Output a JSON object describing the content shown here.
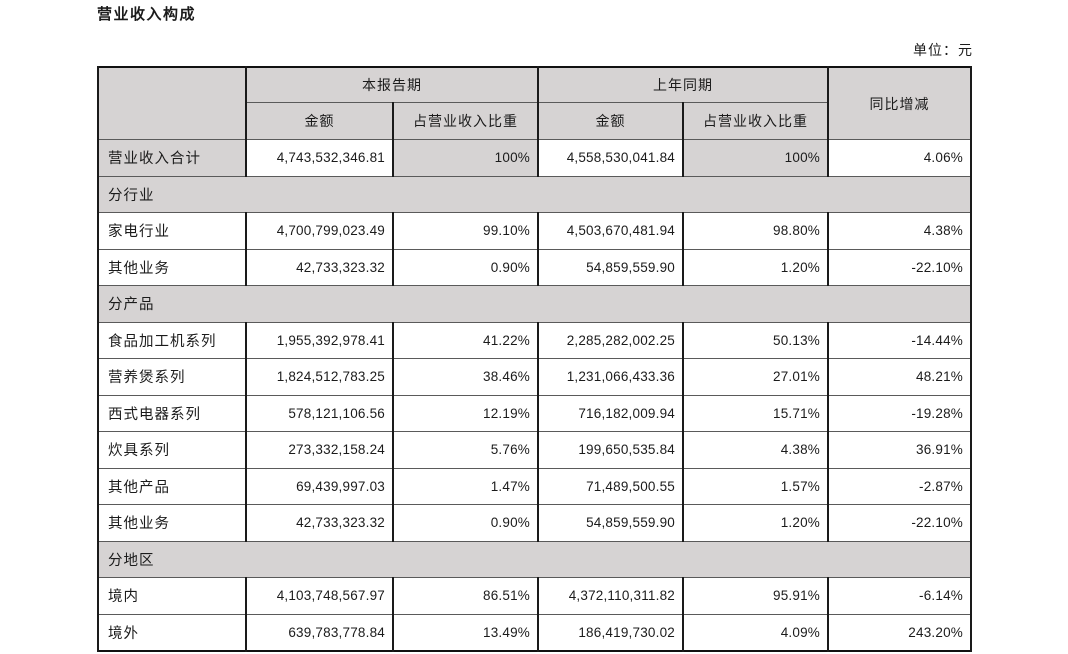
{
  "page": {
    "title": "营业收入构成",
    "unit_label": "单位：元"
  },
  "table": {
    "header": {
      "current_period": "本报告期",
      "prior_period": "上年同期",
      "yoy_change": "同比增减",
      "amount": "金额",
      "proportion": "占营业收入比重"
    },
    "rows": [
      {
        "type": "data",
        "highlight": true,
        "label": "营业收入合计",
        "cur_amount": "4,743,532,346.81",
        "cur_pct": "100%",
        "prior_amount": "4,558,530,041.84",
        "prior_pct": "100%",
        "change": "4.06%"
      },
      {
        "type": "section",
        "label": "分行业"
      },
      {
        "type": "data",
        "label": "家电行业",
        "cur_amount": "4,700,799,023.49",
        "cur_pct": "99.10%",
        "prior_amount": "4,503,670,481.94",
        "prior_pct": "98.80%",
        "change": "4.38%"
      },
      {
        "type": "data",
        "label": "其他业务",
        "cur_amount": "42,733,323.32",
        "cur_pct": "0.90%",
        "prior_amount": "54,859,559.90",
        "prior_pct": "1.20%",
        "change": "-22.10%"
      },
      {
        "type": "section",
        "label": "分产品"
      },
      {
        "type": "data",
        "label": "食品加工机系列",
        "cur_amount": "1,955,392,978.41",
        "cur_pct": "41.22%",
        "prior_amount": "2,285,282,002.25",
        "prior_pct": "50.13%",
        "change": "-14.44%"
      },
      {
        "type": "data",
        "label": "营养煲系列",
        "cur_amount": "1,824,512,783.25",
        "cur_pct": "38.46%",
        "prior_amount": "1,231,066,433.36",
        "prior_pct": "27.01%",
        "change": "48.21%"
      },
      {
        "type": "data",
        "label": "西式电器系列",
        "cur_amount": "578,121,106.56",
        "cur_pct": "12.19%",
        "prior_amount": "716,182,009.94",
        "prior_pct": "15.71%",
        "change": "-19.28%"
      },
      {
        "type": "data",
        "label": "炊具系列",
        "cur_amount": "273,332,158.24",
        "cur_pct": "5.76%",
        "prior_amount": "199,650,535.84",
        "prior_pct": "4.38%",
        "change": "36.91%"
      },
      {
        "type": "data",
        "label": "其他产品",
        "cur_amount": "69,439,997.03",
        "cur_pct": "1.47%",
        "prior_amount": "71,489,500.55",
        "prior_pct": "1.57%",
        "change": "-2.87%"
      },
      {
        "type": "data",
        "label": "其他业务",
        "cur_amount": "42,733,323.32",
        "cur_pct": "0.90%",
        "prior_amount": "54,859,559.90",
        "prior_pct": "1.20%",
        "change": "-22.10%"
      },
      {
        "type": "section",
        "label": "分地区"
      },
      {
        "type": "data",
        "label": "境内",
        "cur_amount": "4,103,748,567.97",
        "cur_pct": "86.51%",
        "prior_amount": "4,372,110,311.82",
        "prior_pct": "95.91%",
        "change": "-6.14%"
      },
      {
        "type": "data",
        "label": "境外",
        "cur_amount": "639,783,778.84",
        "cur_pct": "13.49%",
        "prior_amount": "186,419,730.02",
        "prior_pct": "4.09%",
        "change": "243.20%"
      }
    ],
    "colors": {
      "shaded_bg": "#d6d3d3",
      "row_bg": "#ffffff",
      "border": "#1a1a1a",
      "text": "#1b1b1b"
    }
  }
}
